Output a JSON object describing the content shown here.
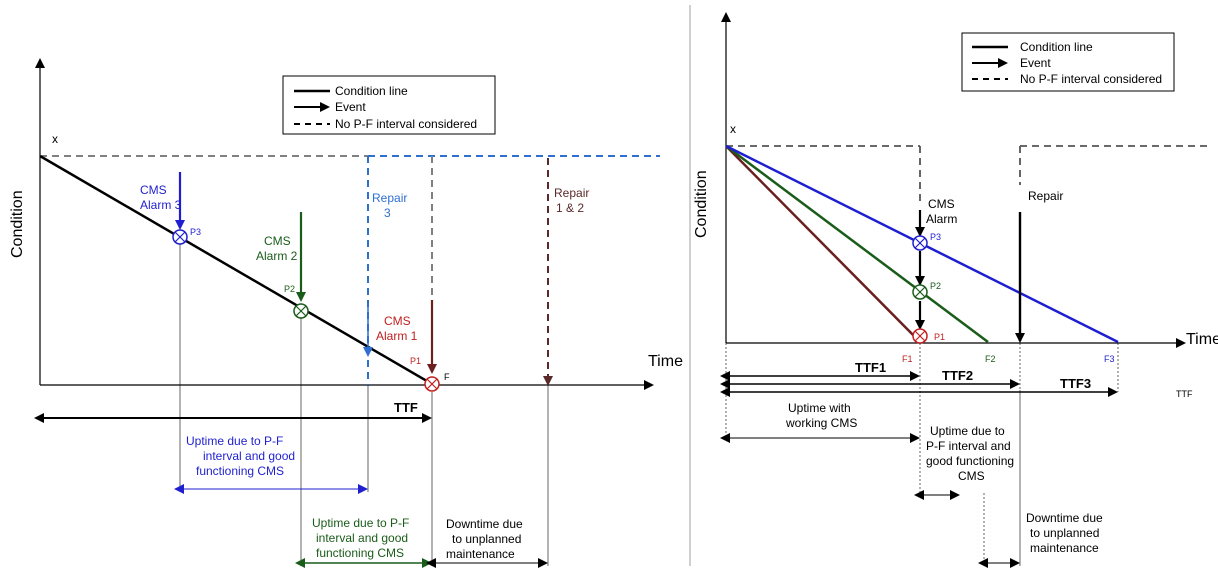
{
  "colors": {
    "black": "#000000",
    "gray_dash": "#808080",
    "blue": "#1f1fd0",
    "light_blue": "#2f6fd0",
    "green": "#1a5c1a",
    "dark_red": "#6b1f1f",
    "red": "#c02020",
    "brown": "#5a2a2a"
  },
  "left": {
    "legend": {
      "condition_line": "Condition line",
      "event": "Event",
      "no_pf": "No P-F interval considered"
    },
    "axis": {
      "y": "Condition",
      "x": "Time",
      "x_start": "x"
    },
    "alarms": {
      "cms3": [
        "CMS",
        "Alarm 3"
      ],
      "cms2": [
        "CMS",
        "Alarm 2"
      ],
      "cms1": [
        "CMS",
        "Alarm 1"
      ]
    },
    "points": {
      "p1": "P1",
      "p2": "P2",
      "p3": "P3",
      "f": "F"
    },
    "repairs": {
      "repair3": [
        "Repair",
        "3"
      ],
      "repair12": [
        "Repair",
        "1 & 2"
      ]
    },
    "ttf": "TTF",
    "uptime_blue": [
      "Uptime  due to P-F",
      "interval and good",
      "functioning CMS"
    ],
    "uptime_green": [
      "Uptime  due to P-F",
      "interval and good",
      "functioning CMS"
    ],
    "downtime": [
      "Downtime due",
      "to unplanned",
      "maintenance"
    ]
  },
  "right": {
    "legend": {
      "condition_line": "Condition line",
      "event": "Event",
      "no_pf": "No P-F interval considered"
    },
    "axis": {
      "y": "Condition",
      "x": "Time",
      "x_start": "x"
    },
    "alarm": [
      "CMS",
      "Alarm"
    ],
    "repair": "Repair",
    "points": {
      "p1": "P1",
      "p2": "P2",
      "p3": "P3"
    },
    "failures": {
      "f1": "F1",
      "f2": "F2",
      "f3": "F3"
    },
    "ttf1": "TTF1",
    "ttf2": "TTF2",
    "ttf3": "TTF3",
    "ttf": "TTF",
    "uptime_cms": [
      "Uptime with",
      "working CMS"
    ],
    "uptime_pf": [
      "Uptime  due to",
      "P-F interval and",
      "good functioning",
      "CMS"
    ],
    "downtime": [
      "Downtime due",
      "to unplanned",
      "maintenance"
    ]
  }
}
